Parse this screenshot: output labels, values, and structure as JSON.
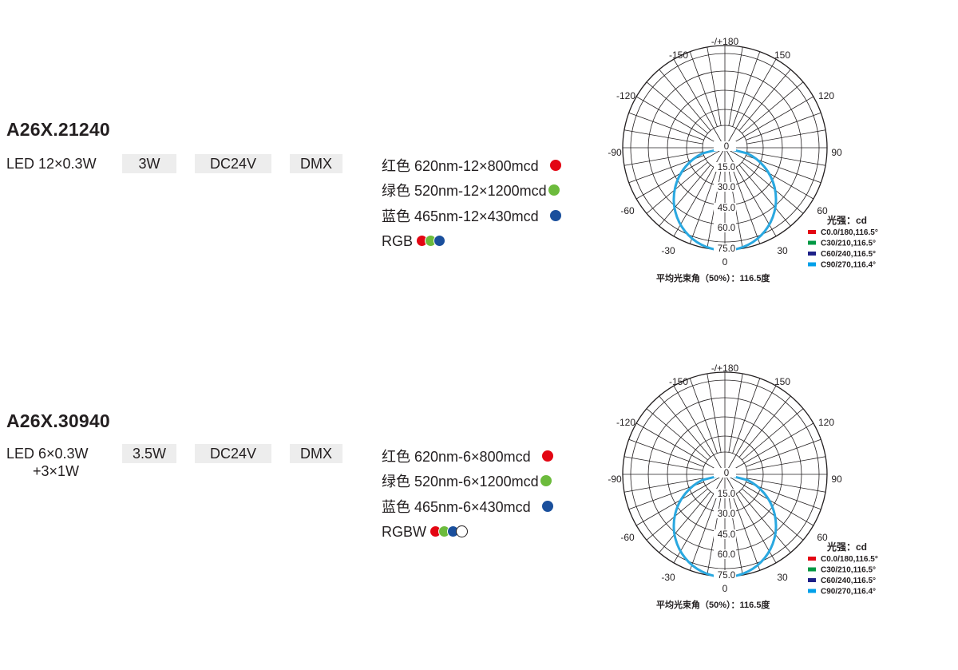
{
  "products": [
    {
      "model": "A26X.21240",
      "led_line1": "LED 12×0.3W",
      "led_line2": "",
      "power": "3W",
      "voltage": "DC24V",
      "control": "DMX",
      "channels": [
        {
          "label": "红色 620nm-12×800mcd",
          "color": "#e30613"
        },
        {
          "label": "绿色 520nm-12×1200mcd",
          "color": "#6cbb3c"
        },
        {
          "label": "蓝色 465nm-12×430mcd",
          "color": "#1a4f9c"
        }
      ],
      "combo": {
        "label": "RGB",
        "dots": [
          "#e30613",
          "#6cbb3c",
          "#1a4f9c"
        ]
      },
      "diagram": {
        "top_label": "-/+180",
        "angle_labels": [
          "-150",
          "150",
          "-120",
          "120",
          "-90",
          "90",
          "-60",
          "60",
          "-30",
          "30",
          "0"
        ],
        "radial_labels": [
          "0",
          "15.0",
          "30.0",
          "45.0",
          "60.0",
          "75.0"
        ],
        "legend_title": "光强：cd",
        "legend": [
          {
            "label": "C0.0/180,116.5°",
            "color": "#e30613"
          },
          {
            "label": "C30/210,116.5°",
            "color": "#009944"
          },
          {
            "label": "C60/240,116.5°",
            "color": "#1d2088"
          },
          {
            "label": "C90/270,116.4°",
            "color": "#00a0e9"
          }
        ],
        "beam_angle_label": "平均光束角（50%）：116.5度"
      }
    },
    {
      "model": "A26X.30940",
      "led_line1": "LED 6×0.3W",
      "led_line2": "+3×1W",
      "power": "3.5W",
      "voltage": "DC24V",
      "control": "DMX",
      "channels": [
        {
          "label": "红色 620nm-6×800mcd",
          "color": "#e30613"
        },
        {
          "label": "绿色 520nm-6×1200mcd",
          "color": "#6cbb3c"
        },
        {
          "label": "蓝色 465nm-6×430mcd",
          "color": "#1a4f9c"
        }
      ],
      "combo": {
        "label": "RGBW",
        "dots": [
          "#e30613",
          "#6cbb3c",
          "#1a4f9c",
          "#ffffff"
        ]
      },
      "diagram": {
        "top_label": "-/+180",
        "angle_labels": [
          "-150",
          "150",
          "-120",
          "120",
          "-90",
          "90",
          "-60",
          "60",
          "-30",
          "30",
          "0"
        ],
        "radial_labels": [
          "0",
          "15.0",
          "30.0",
          "45.0",
          "60.0",
          "75.0"
        ],
        "legend_title": "光强：cd",
        "legend": [
          {
            "label": "C0.0/180,116.5°",
            "color": "#e30613"
          },
          {
            "label": "C30/210,116.5°",
            "color": "#009944"
          },
          {
            "label": "C60/240,116.5°",
            "color": "#1d2088"
          },
          {
            "label": "C90/270,116.4°",
            "color": "#00a0e9"
          }
        ],
        "beam_angle_label": "平均光束角（50%）：116.5度"
      }
    }
  ]
}
